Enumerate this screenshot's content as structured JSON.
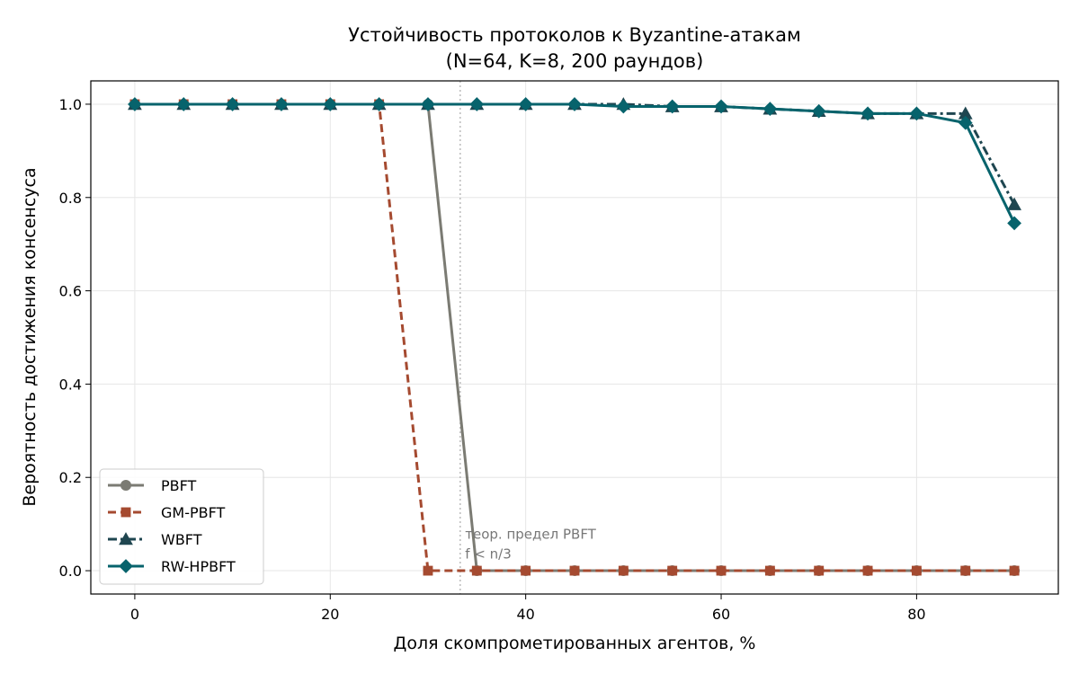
{
  "chart_data": {
    "type": "line",
    "title": "Устойчивость протоколов к Byzantine-атакам",
    "subtitle": "(N=64, K=8, 200 раундов)",
    "xlabel": "Доля скомпрометированных агентов, %",
    "ylabel": "Вероятность достижения консенсуса",
    "xlim": [
      -4.5,
      94.5
    ],
    "ylim": [
      -0.05,
      1.05
    ],
    "xticks": [
      0,
      20,
      40,
      60,
      80
    ],
    "yticks": [
      0.0,
      0.2,
      0.4,
      0.6,
      0.8,
      1.0
    ],
    "xtick_labels": [
      "0",
      "20",
      "40",
      "60",
      "80"
    ],
    "ytick_labels": [
      "0.0",
      "0.2",
      "0.4",
      "0.6",
      "0.8",
      "1.0"
    ],
    "grid": true,
    "legend_position": "lower-left",
    "x": [
      0,
      5,
      10,
      15,
      20,
      25,
      30,
      35,
      40,
      45,
      50,
      55,
      60,
      65,
      70,
      75,
      80,
      85,
      90
    ],
    "series": [
      {
        "name": "PBFT",
        "color": "#7b7b73",
        "marker": "circle",
        "linestyle": "solid",
        "values": [
          1.0,
          1.0,
          1.0,
          1.0,
          1.0,
          1.0,
          1.0,
          0.0,
          0.0,
          0.0,
          0.0,
          0.0,
          0.0,
          0.0,
          0.0,
          0.0,
          0.0,
          0.0,
          0.0
        ]
      },
      {
        "name": "GM-PBFT",
        "color": "#a54a30",
        "marker": "square",
        "linestyle": "dashed",
        "values": [
          1.0,
          1.0,
          1.0,
          1.0,
          1.0,
          1.0,
          0.0,
          0.0,
          0.0,
          0.0,
          0.0,
          0.0,
          0.0,
          0.0,
          0.0,
          0.0,
          0.0,
          0.0,
          0.0
        ]
      },
      {
        "name": "WBFT",
        "color": "#1f4650",
        "marker": "triangle",
        "linestyle": "dashdot",
        "values": [
          1.0,
          1.0,
          1.0,
          1.0,
          1.0,
          1.0,
          1.0,
          1.0,
          1.0,
          1.0,
          1.0,
          0.995,
          0.995,
          0.99,
          0.985,
          0.98,
          0.98,
          0.98,
          0.785
        ]
      },
      {
        "name": "RW-HPBFT",
        "color": "#07636c",
        "marker": "diamond",
        "linestyle": "solid",
        "values": [
          1.0,
          1.0,
          1.0,
          1.0,
          1.0,
          1.0,
          1.0,
          1.0,
          1.0,
          1.0,
          0.995,
          0.995,
          0.995,
          0.99,
          0.985,
          0.98,
          0.98,
          0.96,
          0.745
        ]
      }
    ],
    "reference_line": {
      "x": 33.3,
      "style": "dotted",
      "color": "#aaaaaa"
    },
    "annotation": {
      "x": 33.8,
      "y": 0.08,
      "line1": "теор. предел PBFT",
      "line2": "f < n/3"
    }
  }
}
